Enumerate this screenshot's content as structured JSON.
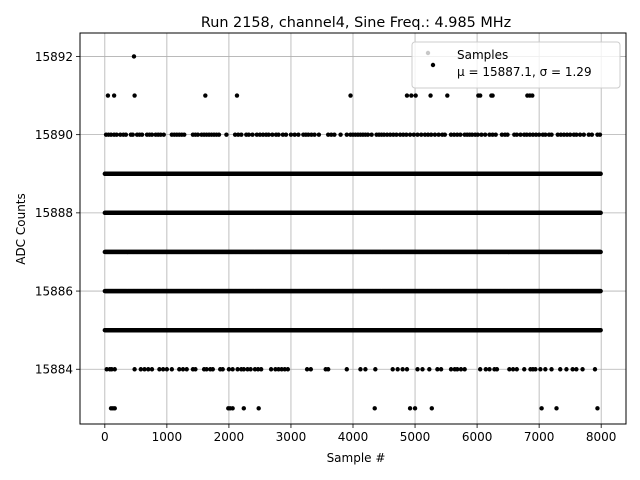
{
  "chart_data": {
    "type": "scatter",
    "title": "Run 2158, channel4, Sine Freq.: 4.985 MHz",
    "xlabel": "Sample #",
    "ylabel": "ADC Counts",
    "xlim": [
      -400,
      8400
    ],
    "ylim": [
      15882.6,
      15892.6
    ],
    "xticks": [
      0,
      1000,
      2000,
      3000,
      4000,
      5000,
      6000,
      7000,
      8000
    ],
    "yticks": [
      15884,
      15886,
      15888,
      15890,
      15892
    ],
    "grid": true,
    "legend_placement": "upper right",
    "colors": {
      "marker": "#000000",
      "grid": "#b0b0b0",
      "legend_first_marker": "#c8c8c8"
    },
    "legend": [
      {
        "label": "Samples"
      },
      {
        "label": "μ = 15887.1, σ = 1.29"
      }
    ],
    "series": [
      {
        "name": "Samples",
        "n_samples": 8000,
        "dense_levels": [
          15885,
          15886,
          15887,
          15888,
          15889
        ],
        "levels": [
          {
            "y": 15892,
            "x": [
              470
            ]
          },
          {
            "y": 15891,
            "x": [
              50,
              150,
              480,
              1620,
              2130,
              3960,
              4870,
              4940,
              5010,
              5250,
              5520,
              6020,
              6050,
              6230,
              6250,
              6810,
              6850,
              6890
            ]
          },
          {
            "y": 15890,
            "x": [
              20,
              60,
              100,
              150,
              190,
              250,
              300,
              340,
              420,
              450,
              520,
              560,
              600,
              680,
              720,
              760,
              820,
              860,
              900,
              950,
              1080,
              1120,
              1160,
              1200,
              1240,
              1280,
              1420,
              1460,
              1500,
              1560,
              1600,
              1640,
              1680,
              1720,
              1760,
              1800,
              1840,
              1960,
              2100,
              2150,
              2200,
              2280,
              2320,
              2380,
              2450,
              2500,
              2550,
              2600,
              2640,
              2700,
              2760,
              2800,
              2870,
              2920,
              3000,
              3060,
              3120,
              3200,
              3240,
              3280,
              3330,
              3380,
              3450,
              3600,
              3650,
              3700,
              3800,
              3900,
              3960,
              4000,
              4040,
              4080,
              4120,
              4160,
              4200,
              4240,
              4300,
              4380,
              4420,
              4460,
              4500,
              4550,
              4600,
              4650,
              4700,
              4760,
              4810,
              4860,
              4920,
              4980,
              5040,
              5100,
              5160,
              5210,
              5260,
              5320,
              5380,
              5440,
              5480,
              5580,
              5630,
              5680,
              5730,
              5800,
              5840,
              5880,
              5920,
              5970,
              6010,
              6070,
              6130,
              6200,
              6250,
              6300,
              6400,
              6450,
              6490,
              6600,
              6640,
              6700,
              6760,
              6800,
              6850,
              6900,
              6950,
              7000,
              7060,
              7100,
              7160,
              7200,
              7300,
              7350,
              7400,
              7450,
              7500,
              7560,
              7600,
              7660,
              7720,
              7800,
              7850,
              7940,
              7980
            ]
          },
          {
            "y": 15884,
            "x": [
              30,
              80,
              110,
              160,
              480,
              580,
              640,
              700,
              760,
              880,
              940,
              1000,
              1080,
              1200,
              1260,
              1320,
              1420,
              1460,
              1600,
              1640,
              1700,
              1740,
              1860,
              1900,
              2000,
              2060,
              2140,
              2200,
              2240,
              2300,
              2350,
              2420,
              2470,
              2520,
              2680,
              2750,
              2800,
              2850,
              2900,
              2950,
              3260,
              3320,
              3560,
              3600,
              3900,
              4120,
              4200,
              4360,
              4640,
              4720,
              4800,
              4870,
              5040,
              5120,
              5230,
              5360,
              5420,
              5580,
              5640,
              5680,
              5740,
              5800,
              6050,
              6140,
              6200,
              6280,
              6320,
              6520,
              6580,
              6640,
              6760,
              6860,
              6900,
              6940,
              7020,
              7100,
              7200,
              7340,
              7440,
              7540,
              7600,
              7700,
              7900
            ]
          },
          {
            "y": 15883,
            "x": [
              100,
              130,
              160,
              1990,
              2020,
              2060,
              2240,
              2480,
              4350,
              4920,
              5000,
              5270,
              7040,
              7280,
              7940
            ]
          }
        ]
      }
    ],
    "stats": {
      "mean": 15887.1,
      "sigma": 1.29
    }
  }
}
